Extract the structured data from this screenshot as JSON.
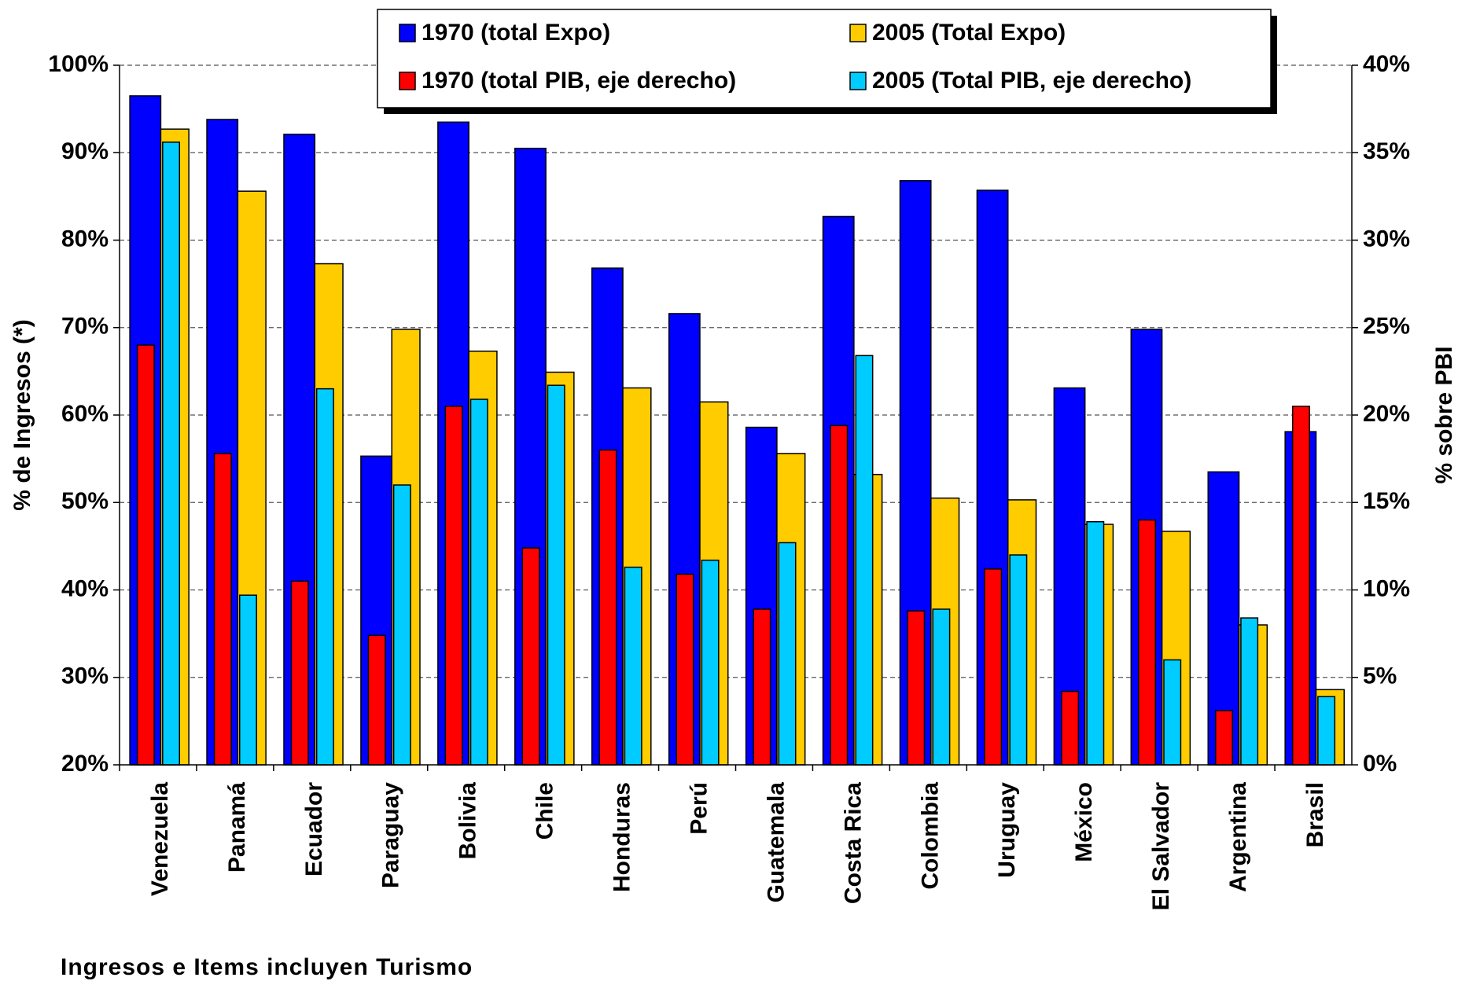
{
  "chart_data": {
    "type": "bar",
    "ylabel": "% de Ingresos (*)",
    "y2label": "% sobre PBI",
    "note": "Ingresos e Items incluyen Turismo",
    "categories": [
      "Venezuela",
      "Panamá",
      "Ecuador",
      "Paraguay",
      "Bolivia",
      "Chile",
      "Honduras",
      "Perú",
      "Guatemala",
      "Costa Rica",
      "Colombia",
      "Uruguay",
      "México",
      "El Salvador",
      "Argentina",
      "Brasil"
    ],
    "series": [
      {
        "name": "1970 (total Expo)",
        "color": "#0000ff",
        "values": [
          96.5,
          93.8,
          92.1,
          55.3,
          93.5,
          90.5,
          76.8,
          71.6,
          58.6,
          82.7,
          86.8,
          85.7,
          63.1,
          69.8,
          53.5,
          58.1
        ]
      },
      {
        "name": "2005 (Total Expo)",
        "color": "#ffcc00",
        "values": [
          92.7,
          85.6,
          77.3,
          69.8,
          67.3,
          64.9,
          63.1,
          61.5,
          55.6,
          53.2,
          50.5,
          50.3,
          47.5,
          46.7,
          36,
          28.6
        ]
      },
      {
        "name": "1970 (total PIB, eje derecho)",
        "color": "#ff0000",
        "axis": "y2",
        "values": [
          24,
          17.8,
          10.5,
          7.4,
          20.5,
          12.4,
          18,
          10.9,
          8.9,
          19.4,
          8.8,
          11.2,
          4.2,
          14,
          3.1,
          20.5
        ]
      },
      {
        "name": "2005 (Total PIB, eje derecho)",
        "color": "#00ccff",
        "axis": "y2",
        "values": [
          35.6,
          9.7,
          21.5,
          16,
          20.9,
          21.7,
          11.3,
          11.7,
          12.7,
          23.4,
          8.9,
          12,
          13.9,
          6,
          8.4,
          3.9
        ]
      }
    ],
    "ylim": [
      20,
      100
    ],
    "yticks": [
      {
        "value": 20,
        "label": "20%"
      },
      {
        "value": 30,
        "label": "30%"
      },
      {
        "value": 40,
        "label": "40%"
      },
      {
        "value": 50,
        "label": "50%"
      },
      {
        "value": 60,
        "label": "60%"
      },
      {
        "value": 70,
        "label": "70%"
      },
      {
        "value": 80,
        "label": "80%"
      },
      {
        "value": 90,
        "label": "90%"
      },
      {
        "value": 100,
        "label": "100%"
      }
    ],
    "y2lim": [
      0,
      40
    ],
    "y2ticks": [
      {
        "value": 0,
        "label": "0%"
      },
      {
        "value": 5,
        "label": "5%"
      },
      {
        "value": 10,
        "label": "10%"
      },
      {
        "value": 15,
        "label": "15%"
      },
      {
        "value": 20,
        "label": "20%"
      },
      {
        "value": 25,
        "label": "25%"
      },
      {
        "value": 30,
        "label": "30%"
      },
      {
        "value": 35,
        "label": "35%"
      },
      {
        "value": 40,
        "label": "40%"
      }
    ],
    "grid": true,
    "legend": "top"
  }
}
